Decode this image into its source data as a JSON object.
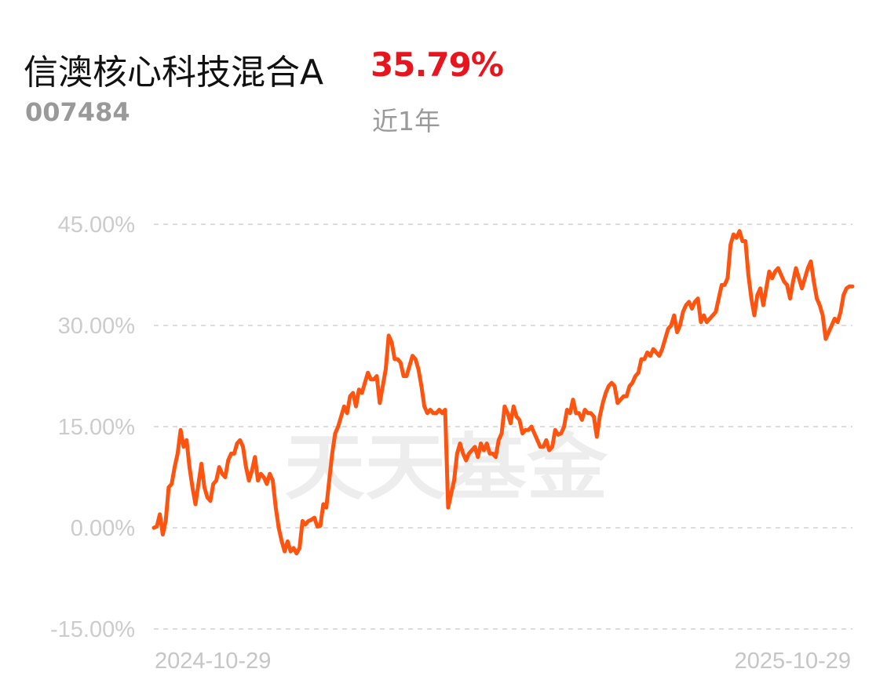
{
  "fund": {
    "name": "信澳核心科技混合A",
    "code": "007484",
    "return": "35.79%",
    "period": "近1年"
  },
  "watermark": "天天基金",
  "colors": {
    "line": "#ff5410",
    "return": "#e8141e",
    "grid": "#dddddd",
    "axis_text": "#cccccc"
  },
  "chart_data": {
    "type": "line",
    "title": "",
    "xlabel": "",
    "ylabel": "",
    "ylim": [
      -15,
      45
    ],
    "yticks": [
      45,
      30,
      15,
      0,
      -15
    ],
    "ytick_labels": [
      "45.00%",
      "30.00%",
      "15.00%",
      "0.00%",
      "-15.00%"
    ],
    "x_start": "2024-10-29",
    "x_end": "2025-10-29",
    "x_labels": [
      "2024-10-29",
      "2025-10-29"
    ],
    "grid": true,
    "legend": "none",
    "series": [
      {
        "values": [
          0.0,
          0.2,
          2.0,
          -1.0,
          1.0,
          6.0,
          6.5,
          9.0,
          11.0,
          14.5,
          12.0,
          13.0,
          9.0,
          6.0,
          3.5,
          6.5,
          9.5,
          6.0,
          4.5,
          4.0,
          6.5,
          7.0,
          9.0,
          8.0,
          7.5,
          10.0,
          11.0,
          11.0,
          12.5,
          13.0,
          12.0,
          9.0,
          7.0,
          8.5,
          10.5,
          7.0,
          8.0,
          7.5,
          6.5,
          8.0,
          7.0,
          3.0,
          0.0,
          -2.0,
          -3.5,
          -2.0,
          -3.5,
          -3.0,
          -3.8,
          -3.0,
          1.0,
          0.5,
          1.0,
          1.2,
          1.5,
          0.2,
          0.3,
          3.5,
          3.0,
          7.0,
          11.0,
          14.0,
          15.0,
          16.5,
          18.0,
          17.0,
          19.5,
          20.0,
          18.0,
          20.5,
          20.0,
          21.5,
          23.0,
          22.0,
          22.0,
          22.5,
          18.5,
          21.0,
          23.5,
          28.5,
          27.5,
          25.0,
          25.0,
          24.5,
          22.5,
          22.5,
          24.0,
          25.5,
          25.0,
          23.5,
          21.0,
          18.0,
          17.0,
          17.5,
          17.0,
          17.0,
          17.5,
          17.0,
          17.5,
          3.0,
          5.0,
          7.0,
          11.0,
          12.5,
          11.0,
          10.0,
          11.0,
          11.5,
          12.0,
          10.5,
          12.5,
          11.5,
          12.5,
          11.0,
          11.0,
          10.5,
          13.0,
          14.0,
          18.0,
          17.0,
          15.5,
          18.0,
          16.5,
          16.0,
          14.0,
          14.5,
          14.5,
          15.0,
          14.0,
          13.0,
          12.0,
          12.0,
          13.0,
          11.5,
          12.0,
          14.5,
          13.8,
          14.0,
          15.0,
          17.5,
          17.0,
          19.0,
          17.0,
          17.0,
          16.0,
          17.5,
          17.0,
          17.0,
          16.5,
          13.5,
          16.5,
          18.5,
          20.0,
          21.0,
          21.5,
          21.0,
          18.5,
          19.0,
          19.5,
          19.5,
          21.0,
          21.5,
          22.5,
          23.0,
          25.0,
          25.0,
          26.0,
          25.5,
          26.5,
          26.0,
          25.5,
          26.5,
          28.0,
          29.5,
          30.0,
          31.5,
          29.0,
          30.0,
          32.0,
          33.0,
          33.5,
          32.5,
          33.5,
          34.0,
          30.5,
          31.5,
          30.5,
          31.0,
          31.5,
          32.0,
          34.0,
          36.0,
          36.0,
          37.0,
          42.0,
          43.5,
          43.0,
          44.0,
          42.5,
          42.5,
          37.5,
          34.0,
          31.5,
          34.5,
          35.5,
          33.0,
          35.5,
          38.0,
          37.0,
          38.0,
          38.5,
          37.5,
          36.5,
          36.0,
          34.0,
          36.5,
          38.5,
          37.0,
          35.5,
          37.0,
          38.5,
          39.5,
          36.5,
          34.0,
          33.0,
          31.5,
          28.0,
          29.0,
          30.0,
          31.0,
          30.5,
          32.0,
          34.5,
          35.5,
          35.8,
          35.79
        ]
      }
    ]
  }
}
